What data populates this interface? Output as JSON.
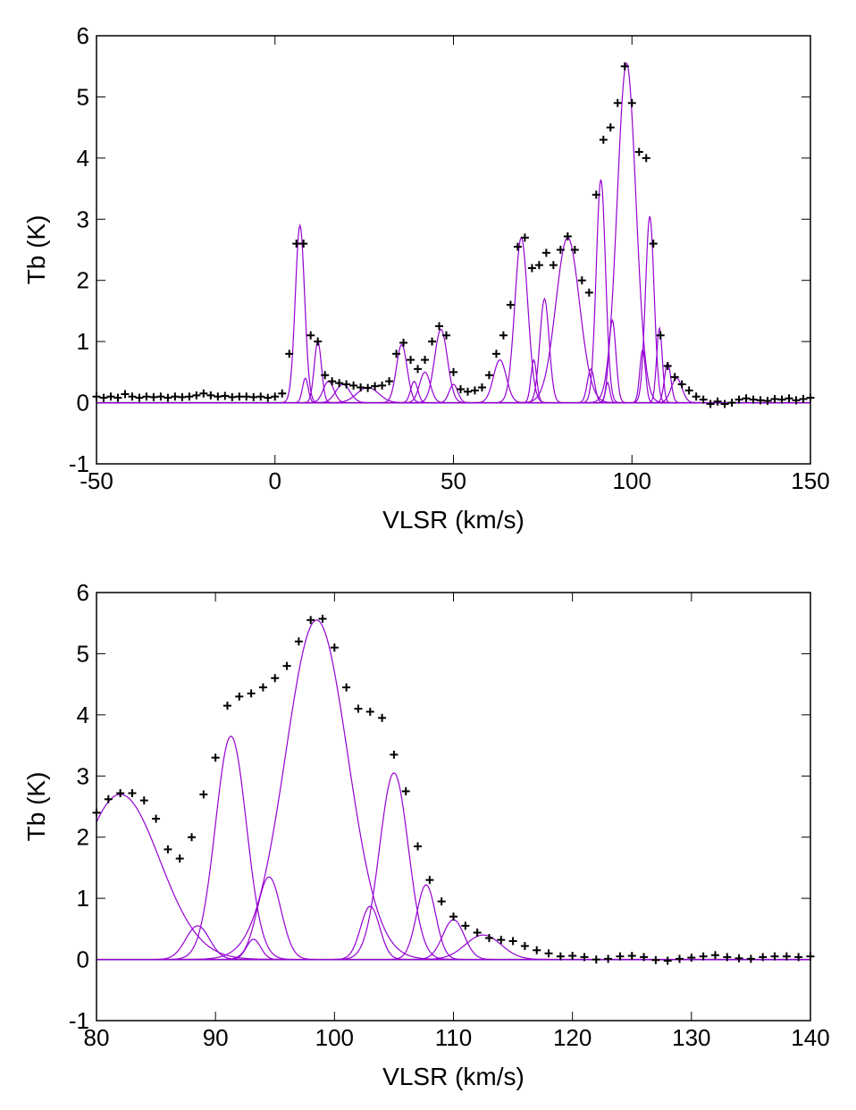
{
  "chart_data": [
    {
      "type": "spectrum-fit",
      "xlabel": "VLSR (km/s)",
      "ylabel": "Tb (K)",
      "xlim": [
        -50,
        150
      ],
      "xticks": [
        -50,
        0,
        50,
        100,
        150
      ],
      "ylim": [
        -1,
        6
      ],
      "yticks": [
        -1,
        0,
        1,
        2,
        3,
        4,
        5,
        6
      ],
      "points_color": "#000000",
      "component_color": "#9400d3",
      "x": [
        -50,
        -48,
        -46,
        -44,
        -42,
        -40,
        -38,
        -36,
        -34,
        -32,
        -30,
        -28,
        -26,
        -24,
        -22,
        -20,
        -18,
        -16,
        -14,
        -12,
        -10,
        -8,
        -6,
        -4,
        -2,
        0,
        2,
        4,
        6,
        8,
        10,
        12,
        14,
        16,
        18,
        20,
        22,
        24,
        26,
        28,
        30,
        32,
        34,
        36,
        38,
        40,
        42,
        44,
        46,
        48,
        50,
        52,
        54,
        56,
        58,
        60,
        62,
        64,
        66,
        68,
        70,
        72,
        74,
        76,
        78,
        80,
        82,
        84,
        86,
        88,
        90,
        92,
        94,
        96,
        98,
        100,
        102,
        104,
        106,
        108,
        110,
        112,
        114,
        116,
        118,
        120,
        122,
        124,
        126,
        128,
        130,
        132,
        134,
        136,
        138,
        140,
        142,
        144,
        146,
        148,
        150
      ],
      "values": [
        0.1,
        0.08,
        0.1,
        0.08,
        0.14,
        0.1,
        0.08,
        0.1,
        0.09,
        0.1,
        0.08,
        0.1,
        0.09,
        0.1,
        0.12,
        0.15,
        0.12,
        0.1,
        0.11,
        0.09,
        0.1,
        0.1,
        0.09,
        0.1,
        0.08,
        0.1,
        0.15,
        0.8,
        2.6,
        2.6,
        1.1,
        1.0,
        0.45,
        0.35,
        0.32,
        0.3,
        0.28,
        0.25,
        0.24,
        0.27,
        0.28,
        0.35,
        0.8,
        0.98,
        0.7,
        0.55,
        0.7,
        1.0,
        1.25,
        1.1,
        0.5,
        0.22,
        0.18,
        0.2,
        0.25,
        0.45,
        0.8,
        1.1,
        1.6,
        2.55,
        2.7,
        2.2,
        2.25,
        2.45,
        2.25,
        2.5,
        2.72,
        2.5,
        2.0,
        1.8,
        3.4,
        4.3,
        4.5,
        4.9,
        5.5,
        4.9,
        4.1,
        4.0,
        2.6,
        1.1,
        0.6,
        0.42,
        0.3,
        0.2,
        0.1,
        0.05,
        -0.02,
        0.02,
        -0.02,
        0.0,
        0.05,
        0.07,
        0.05,
        0.04,
        0.03,
        0.06,
        0.05,
        0.07,
        0.04,
        0.06,
        0.08
      ],
      "components": [
        {
          "center": 7,
          "amplitude": 2.9,
          "sigma": 1.3
        },
        {
          "center": 8.5,
          "amplitude": 0.4,
          "sigma": 0.8
        },
        {
          "center": 12,
          "amplitude": 1.0,
          "sigma": 1.0
        },
        {
          "center": 15,
          "amplitude": 0.35,
          "sigma": 1.5
        },
        {
          "center": 19,
          "amplitude": 0.3,
          "sigma": 2
        },
        {
          "center": 26,
          "amplitude": 0.25,
          "sigma": 3
        },
        {
          "center": 35.5,
          "amplitude": 0.95,
          "sigma": 1.5
        },
        {
          "center": 39,
          "amplitude": 0.35,
          "sigma": 1
        },
        {
          "center": 42,
          "amplitude": 0.5,
          "sigma": 1.5
        },
        {
          "center": 46.5,
          "amplitude": 1.2,
          "sigma": 1.8
        },
        {
          "center": 50,
          "amplitude": 0.3,
          "sigma": 1.2
        },
        {
          "center": 63,
          "amplitude": 0.7,
          "sigma": 1.8
        },
        {
          "center": 69,
          "amplitude": 2.7,
          "sigma": 1.8
        },
        {
          "center": 72.5,
          "amplitude": 0.7,
          "sigma": 0.8
        },
        {
          "center": 75.5,
          "amplitude": 1.7,
          "sigma": 1.3
        },
        {
          "center": 82,
          "amplitude": 2.7,
          "sigma": 3.3
        },
        {
          "center": 88.5,
          "amplitude": 0.55,
          "sigma": 1.0
        },
        {
          "center": 91.3,
          "amplitude": 3.65,
          "sigma": 1.3
        },
        {
          "center": 93.2,
          "amplitude": 0.33,
          "sigma": 0.6
        },
        {
          "center": 94.5,
          "amplitude": 1.35,
          "sigma": 1.0
        },
        {
          "center": 98.5,
          "amplitude": 5.55,
          "sigma": 2.6
        },
        {
          "center": 103,
          "amplitude": 0.87,
          "sigma": 0.8
        },
        {
          "center": 105,
          "amplitude": 3.05,
          "sigma": 1.2
        },
        {
          "center": 107.7,
          "amplitude": 1.22,
          "sigma": 0.8
        },
        {
          "center": 110,
          "amplitude": 0.65,
          "sigma": 0.9
        },
        {
          "center": 112.5,
          "amplitude": 0.4,
          "sigma": 1.5
        }
      ]
    },
    {
      "type": "spectrum-fit",
      "xlabel": "VLSR (km/s)",
      "ylabel": "Tb (K)",
      "xlim": [
        80,
        140
      ],
      "xticks": [
        80,
        90,
        100,
        110,
        120,
        130,
        140
      ],
      "ylim": [
        -1,
        6
      ],
      "yticks": [
        -1,
        0,
        1,
        2,
        3,
        4,
        5,
        6
      ],
      "points_color": "#000000",
      "component_color": "#9400d3",
      "x": [
        80,
        81,
        82,
        83,
        84,
        85,
        86,
        87,
        88,
        89,
        90,
        91,
        92,
        93,
        94,
        95,
        96,
        97,
        98,
        99,
        100,
        101,
        102,
        103,
        104,
        105,
        106,
        107,
        108,
        109,
        110,
        111,
        112,
        113,
        114,
        115,
        116,
        117,
        118,
        119,
        120,
        121,
        122,
        123,
        124,
        125,
        126,
        127,
        128,
        129,
        130,
        131,
        132,
        133,
        134,
        135,
        136,
        137,
        138,
        139,
        140
      ],
      "values": [
        2.4,
        2.62,
        2.72,
        2.72,
        2.6,
        2.3,
        1.8,
        1.65,
        2.0,
        2.7,
        3.3,
        4.15,
        4.3,
        4.35,
        4.45,
        4.6,
        4.8,
        5.2,
        5.55,
        5.57,
        5.1,
        4.45,
        4.1,
        4.05,
        3.95,
        3.35,
        2.75,
        1.85,
        1.3,
        0.95,
        0.7,
        0.55,
        0.44,
        0.35,
        0.32,
        0.3,
        0.22,
        0.15,
        0.1,
        0.05,
        0.06,
        0.04,
        0.0,
        0.01,
        0.05,
        0.06,
        0.04,
        -0.01,
        -0.02,
        0.01,
        0.03,
        0.05,
        0.07,
        0.04,
        0.02,
        0.01,
        0.04,
        0.05,
        0.05,
        0.04,
        0.05
      ],
      "components": [
        {
          "center": 82,
          "amplitude": 2.7,
          "sigma": 3.3
        },
        {
          "center": 88.5,
          "amplitude": 0.55,
          "sigma": 1.0
        },
        {
          "center": 91.3,
          "amplitude": 3.65,
          "sigma": 1.3
        },
        {
          "center": 93.2,
          "amplitude": 0.33,
          "sigma": 0.6
        },
        {
          "center": 94.5,
          "amplitude": 1.35,
          "sigma": 1.0
        },
        {
          "center": 98.5,
          "amplitude": 5.55,
          "sigma": 2.6
        },
        {
          "center": 103,
          "amplitude": 0.87,
          "sigma": 0.8
        },
        {
          "center": 105,
          "amplitude": 3.05,
          "sigma": 1.2
        },
        {
          "center": 107.7,
          "amplitude": 1.22,
          "sigma": 0.8
        },
        {
          "center": 110,
          "amplitude": 0.65,
          "sigma": 0.9
        },
        {
          "center": 112.5,
          "amplitude": 0.4,
          "sigma": 1.5
        }
      ]
    }
  ]
}
